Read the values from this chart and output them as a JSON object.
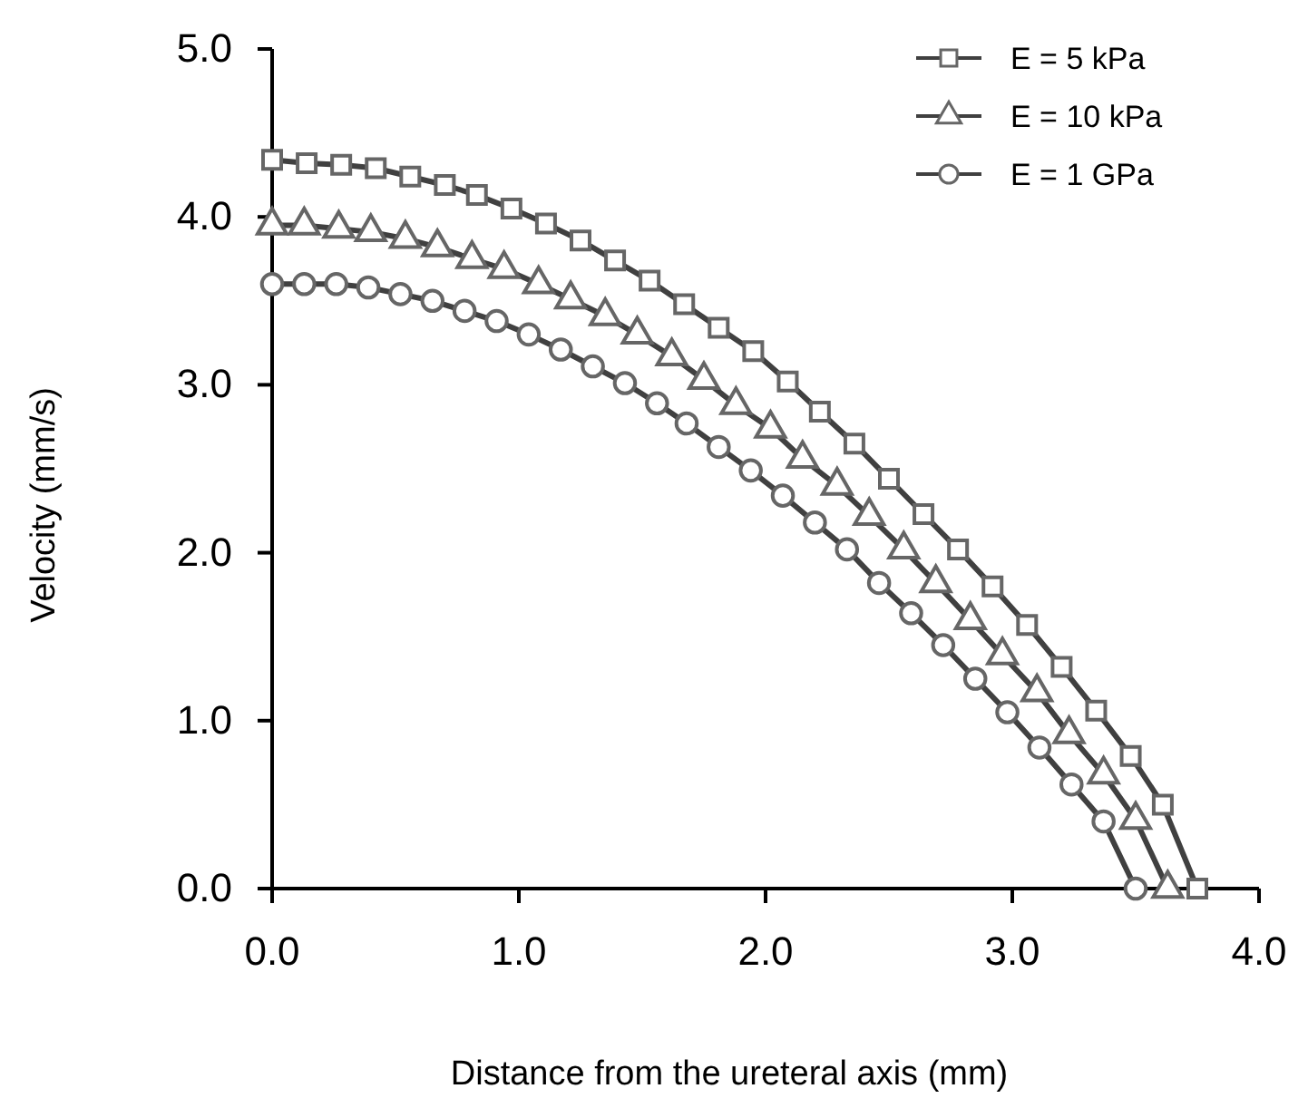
{
  "chart_data": {
    "type": "line",
    "xlabel": "Distance from the ureteral axis (mm)",
    "ylabel": "Velocity (mm/s)",
    "xlim": [
      0,
      4
    ],
    "xticks": [
      {
        "value": 0,
        "label": "0.0"
      },
      {
        "value": 1,
        "label": "1.0"
      },
      {
        "value": 2,
        "label": "2.0"
      },
      {
        "value": 3,
        "label": "3.0"
      },
      {
        "value": 4,
        "label": "4.0"
      }
    ],
    "ylim": [
      0,
      5
    ],
    "yticks": [
      {
        "value": 0,
        "label": "0.0"
      },
      {
        "value": 1,
        "label": "1.0"
      },
      {
        "value": 2,
        "label": "2.0"
      },
      {
        "value": 3,
        "label": "3.0"
      },
      {
        "value": 4,
        "label": "4.0"
      },
      {
        "value": 5,
        "label": "5.0"
      }
    ],
    "legend": "top right",
    "grid": false,
    "line_style": "solid",
    "series": [
      {
        "name": "E = 5 kPa",
        "color": "#404040",
        "marker": "square",
        "x": [
          0,
          0.14,
          0.28,
          0.42,
          0.56,
          0.7,
          0.83,
          0.97,
          1.11,
          1.25,
          1.39,
          1.53,
          1.67,
          1.81,
          1.95,
          2.09,
          2.22,
          2.36,
          2.5,
          2.64,
          2.78,
          2.92,
          3.06,
          3.2,
          3.34,
          3.48,
          3.61,
          3.75
        ],
        "values": [
          4.34,
          4.32,
          4.31,
          4.29,
          4.24,
          4.19,
          4.13,
          4.05,
          3.96,
          3.86,
          3.74,
          3.62,
          3.48,
          3.34,
          3.2,
          3.02,
          2.84,
          2.65,
          2.44,
          2.23,
          2.02,
          1.8,
          1.57,
          1.32,
          1.06,
          0.79,
          0.5,
          0
        ]
      },
      {
        "name": "E = 10 kPa",
        "color": "#404040",
        "marker": "triangle",
        "x": [
          0,
          0.13,
          0.27,
          0.4,
          0.54,
          0.67,
          0.81,
          0.94,
          1.08,
          1.21,
          1.35,
          1.48,
          1.62,
          1.75,
          1.88,
          2.02,
          2.15,
          2.29,
          2.42,
          2.56,
          2.69,
          2.83,
          2.96,
          3.1,
          3.23,
          3.37,
          3.5,
          3.63
        ],
        "values": [
          3.95,
          3.95,
          3.93,
          3.91,
          3.87,
          3.82,
          3.75,
          3.69,
          3.6,
          3.51,
          3.41,
          3.3,
          3.17,
          3.03,
          2.88,
          2.74,
          2.56,
          2.4,
          2.22,
          2.02,
          1.82,
          1.6,
          1.39,
          1.17,
          0.92,
          0.68,
          0.41,
          0
        ]
      },
      {
        "name": "E = 1 GPa",
        "color": "#404040",
        "marker": "circle",
        "x": [
          0,
          0.13,
          0.26,
          0.39,
          0.52,
          0.65,
          0.78,
          0.91,
          1.04,
          1.17,
          1.3,
          1.43,
          1.56,
          1.68,
          1.81,
          1.94,
          2.07,
          2.2,
          2.33,
          2.46,
          2.59,
          2.72,
          2.85,
          2.98,
          3.11,
          3.24,
          3.37,
          3.5
        ],
        "values": [
          3.6,
          3.6,
          3.6,
          3.58,
          3.54,
          3.5,
          3.44,
          3.38,
          3.3,
          3.21,
          3.11,
          3.01,
          2.89,
          2.77,
          2.63,
          2.49,
          2.34,
          2.18,
          2.02,
          1.82,
          1.64,
          1.45,
          1.25,
          1.05,
          0.84,
          0.62,
          0.4,
          0
        ]
      }
    ]
  }
}
